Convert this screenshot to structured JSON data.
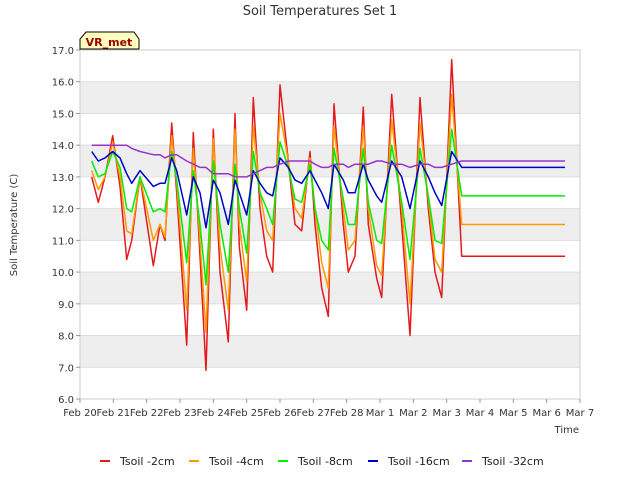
{
  "chart_data": {
    "type": "line",
    "title": "Soil Temperatures Set 1",
    "xlabel": "Time",
    "ylabel": "Soil Temperature (C)",
    "badge": "VR_met",
    "x_ticks": [
      "Feb 20",
      "Feb 21",
      "Feb 22",
      "Feb 23",
      "Feb 24",
      "Feb 25",
      "Feb 26",
      "Feb 27",
      "Feb 28",
      "Mar 1",
      "Mar 2",
      "Mar 3",
      "Mar 4",
      "Mar 5",
      "Mar 6",
      "Mar 7"
    ],
    "y_ticks": [
      "6.0",
      "7.0",
      "8.0",
      "9.0",
      "10.0",
      "11.0",
      "12.0",
      "13.0",
      "14.0",
      "15.0",
      "16.0",
      "17.0"
    ],
    "ylim": [
      6.0,
      17.0
    ],
    "x_range_days": [
      0,
      15
    ],
    "grid": "horizontal bands",
    "legend_position": "bottom",
    "x_days": [
      0.35,
      0.55,
      0.75,
      0.98,
      1.2,
      1.4,
      1.55,
      1.8,
      2.2,
      2.4,
      2.55,
      2.75,
      2.9,
      3.2,
      3.4,
      3.6,
      3.78,
      4.0,
      4.2,
      4.45,
      4.65,
      4.78,
      5.0,
      5.2,
      5.4,
      5.6,
      5.78,
      6.0,
      6.25,
      6.45,
      6.65,
      6.9,
      7.05,
      7.25,
      7.45,
      7.62,
      7.9,
      8.05,
      8.25,
      8.5,
      8.65,
      8.9,
      9.05,
      9.35,
      9.65,
      9.9,
      10.2,
      10.45,
      10.65,
      10.85,
      11.15,
      11.45,
      11.65,
      11.9,
      12.1,
      12.45,
      12.65,
      12.9,
      13.1,
      13.45,
      13.65,
      13.9,
      14.0,
      14.3,
      14.55
    ],
    "series": [
      {
        "name": "Tsoil -2cm",
        "color": "#e41a1c",
        "values": [
          13.0,
          12.2,
          13.0,
          14.3,
          12.7,
          10.4,
          11.0,
          13.0,
          10.2,
          11.5,
          11.0,
          14.7,
          12.5,
          7.7,
          14.4,
          10.5,
          6.9,
          14.5,
          10.0,
          7.8,
          15.0,
          10.8,
          8.8,
          15.5,
          12.0,
          10.5,
          10.0,
          15.9,
          13.5,
          11.5,
          11.3,
          13.8,
          11.5,
          9.5,
          8.6,
          15.3,
          11.5,
          10.0,
          10.5,
          15.2,
          11.5,
          9.8,
          9.2,
          15.6,
          11.5,
          8.0,
          15.5,
          12.0,
          10.0,
          9.2,
          16.7,
          10.5,
          10.5,
          10.5,
          10.5,
          10.5,
          10.5,
          10.5,
          10.5,
          10.5,
          10.5,
          10.5,
          10.5,
          10.5,
          10.5
        ]
      },
      {
        "name": "Tsoil -4cm",
        "color": "#ff9900",
        "values": [
          13.2,
          12.6,
          13.0,
          14.1,
          13.0,
          11.3,
          11.2,
          13.0,
          11.0,
          11.5,
          11.1,
          14.3,
          12.8,
          8.8,
          13.9,
          11.0,
          8.1,
          14.2,
          10.8,
          8.8,
          14.5,
          11.5,
          9.7,
          14.6,
          12.5,
          11.3,
          11.0,
          15.0,
          13.5,
          12.0,
          11.7,
          13.6,
          12.0,
          10.3,
          9.5,
          14.6,
          12.0,
          10.7,
          11.0,
          14.6,
          12.0,
          10.2,
          9.9,
          14.8,
          12.0,
          9.0,
          14.7,
          12.3,
          10.4,
          10.0,
          15.6,
          11.5,
          11.5,
          11.5,
          11.5,
          11.5,
          11.5,
          11.5,
          11.5,
          11.5,
          11.5,
          11.5,
          11.5,
          11.5,
          11.5
        ]
      },
      {
        "name": "Tsoil -8cm",
        "color": "#00ee00",
        "values": [
          13.5,
          13.0,
          13.1,
          13.8,
          13.3,
          12.0,
          11.9,
          13.0,
          11.9,
          12.0,
          11.9,
          13.8,
          12.9,
          10.3,
          13.2,
          11.5,
          9.6,
          13.5,
          11.5,
          10.0,
          13.4,
          12.0,
          10.6,
          13.8,
          12.5,
          12.0,
          11.5,
          14.1,
          13.3,
          12.3,
          12.2,
          13.4,
          12.0,
          11.0,
          10.7,
          13.9,
          12.3,
          11.5,
          11.5,
          13.9,
          12.2,
          11.0,
          10.9,
          14.0,
          12.2,
          10.4,
          13.9,
          12.4,
          11.0,
          10.9,
          14.5,
          12.4,
          12.4,
          12.4,
          12.4,
          12.4,
          12.4,
          12.4,
          12.4,
          12.4,
          12.4,
          12.4,
          12.4,
          12.4,
          12.4
        ]
      },
      {
        "name": "Tsoil -16cm",
        "color": "#0000cc",
        "values": [
          13.8,
          13.5,
          13.6,
          13.8,
          13.6,
          13.1,
          12.8,
          13.2,
          12.7,
          12.8,
          12.8,
          13.6,
          13.2,
          11.8,
          13.0,
          12.5,
          11.4,
          12.9,
          12.5,
          11.5,
          12.9,
          12.5,
          11.8,
          13.2,
          12.8,
          12.5,
          12.4,
          13.6,
          13.3,
          12.9,
          12.8,
          13.2,
          12.9,
          12.5,
          12.0,
          13.4,
          12.9,
          12.5,
          12.5,
          13.4,
          12.9,
          12.4,
          12.2,
          13.5,
          13.0,
          12.0,
          13.5,
          13.0,
          12.5,
          12.1,
          13.8,
          13.3,
          13.3,
          13.3,
          13.3,
          13.3,
          13.3,
          13.3,
          13.3,
          13.3,
          13.3,
          13.3,
          13.3,
          13.3,
          13.3
        ]
      },
      {
        "name": "Tsoil -32cm",
        "color": "#9933cc",
        "values": [
          14.0,
          14.0,
          14.0,
          14.0,
          14.0,
          14.0,
          13.9,
          13.8,
          13.7,
          13.7,
          13.6,
          13.7,
          13.7,
          13.5,
          13.4,
          13.3,
          13.3,
          13.1,
          13.1,
          13.1,
          13.0,
          13.0,
          13.0,
          13.1,
          13.2,
          13.3,
          13.3,
          13.4,
          13.5,
          13.5,
          13.5,
          13.5,
          13.4,
          13.3,
          13.3,
          13.4,
          13.4,
          13.3,
          13.4,
          13.4,
          13.4,
          13.5,
          13.5,
          13.4,
          13.4,
          13.3,
          13.4,
          13.4,
          13.3,
          13.3,
          13.4,
          13.5,
          13.5,
          13.5,
          13.5,
          13.5,
          13.5,
          13.5,
          13.5,
          13.5,
          13.5,
          13.5,
          13.5,
          13.5,
          13.5
        ]
      }
    ]
  }
}
